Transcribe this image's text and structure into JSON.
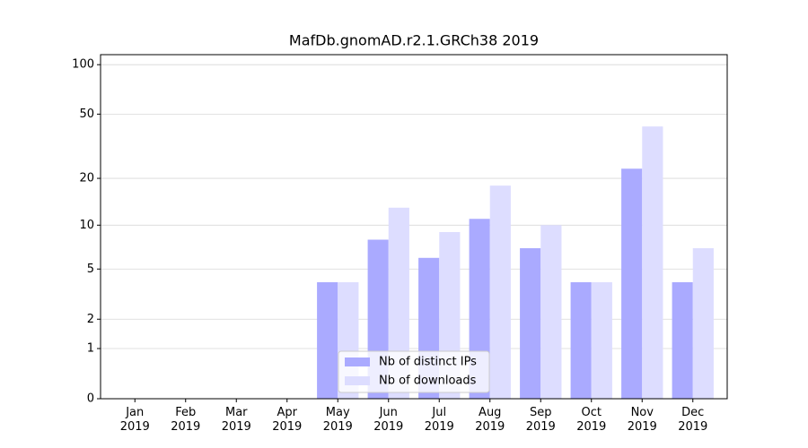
{
  "chart_data": {
    "type": "bar",
    "title": "MafDb.gnomAD.r2.1.GRCh38 2019",
    "categories": [
      "Jan\n2019",
      "Feb\n2019",
      "Mar\n2019",
      "Apr\n2019",
      "May\n2019",
      "Jun\n2019",
      "Jul\n2019",
      "Aug\n2019",
      "Sep\n2019",
      "Oct\n2019",
      "Nov\n2019",
      "Dec\n2019"
    ],
    "series": [
      {
        "name": "Nb of distinct IPs",
        "color": "#aaaaff",
        "values": [
          0,
          0,
          0,
          0,
          4,
          8,
          6,
          11,
          7,
          4,
          23,
          4
        ]
      },
      {
        "name": "Nb of downloads",
        "color": "#ddddff",
        "values": [
          0,
          0,
          0,
          0,
          4,
          13,
          9,
          18,
          10,
          4,
          42,
          7
        ]
      }
    ],
    "yscale": "log1p",
    "ylim": [
      0,
      115
    ],
    "yticks": [
      0,
      1,
      2,
      5,
      10,
      20,
      50,
      100
    ],
    "grid": true,
    "legend": "lower center"
  }
}
